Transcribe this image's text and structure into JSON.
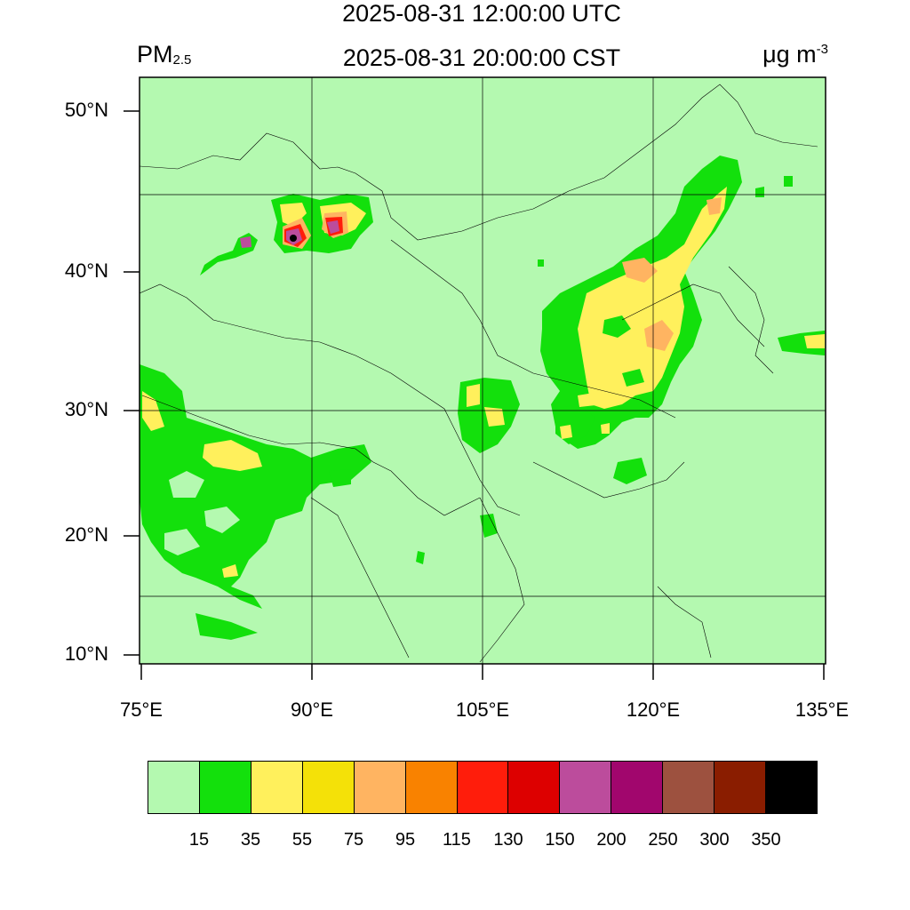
{
  "header": {
    "title_utc": "2025-08-31 12:00:00 UTC",
    "title_cst": "2025-08-31 20:00:00 CST",
    "variable_main": "PM",
    "variable_sub": "2.5",
    "unit_main": "μg m",
    "unit_sup": "-3"
  },
  "axes": {
    "y_labels": [
      "50°N",
      "40°N",
      "30°N",
      "20°N",
      "10°N"
    ],
    "x_labels": [
      "75°E",
      "90°E",
      "105°E",
      "120°E",
      "135°E"
    ],
    "lon_range": [
      75,
      135
    ],
    "lat_range": [
      9,
      52
    ]
  },
  "colorbar": {
    "levels": [
      "15",
      "35",
      "55",
      "75",
      "95",
      "115",
      "130",
      "150",
      "200",
      "250",
      "300",
      "350"
    ],
    "colors": [
      "#b4f9b0",
      "#13e00c",
      "#fff05c",
      "#f4e108",
      "#ffb461",
      "#f98200",
      "#ff1d0b",
      "#dd0000",
      "#bc4c9c",
      "#a1066d",
      "#9d513f",
      "#8a1d00",
      "#000000"
    ]
  },
  "map_colors": {
    "background": "#b4f9b0",
    "grid": "#000000",
    "border": "#000000"
  }
}
